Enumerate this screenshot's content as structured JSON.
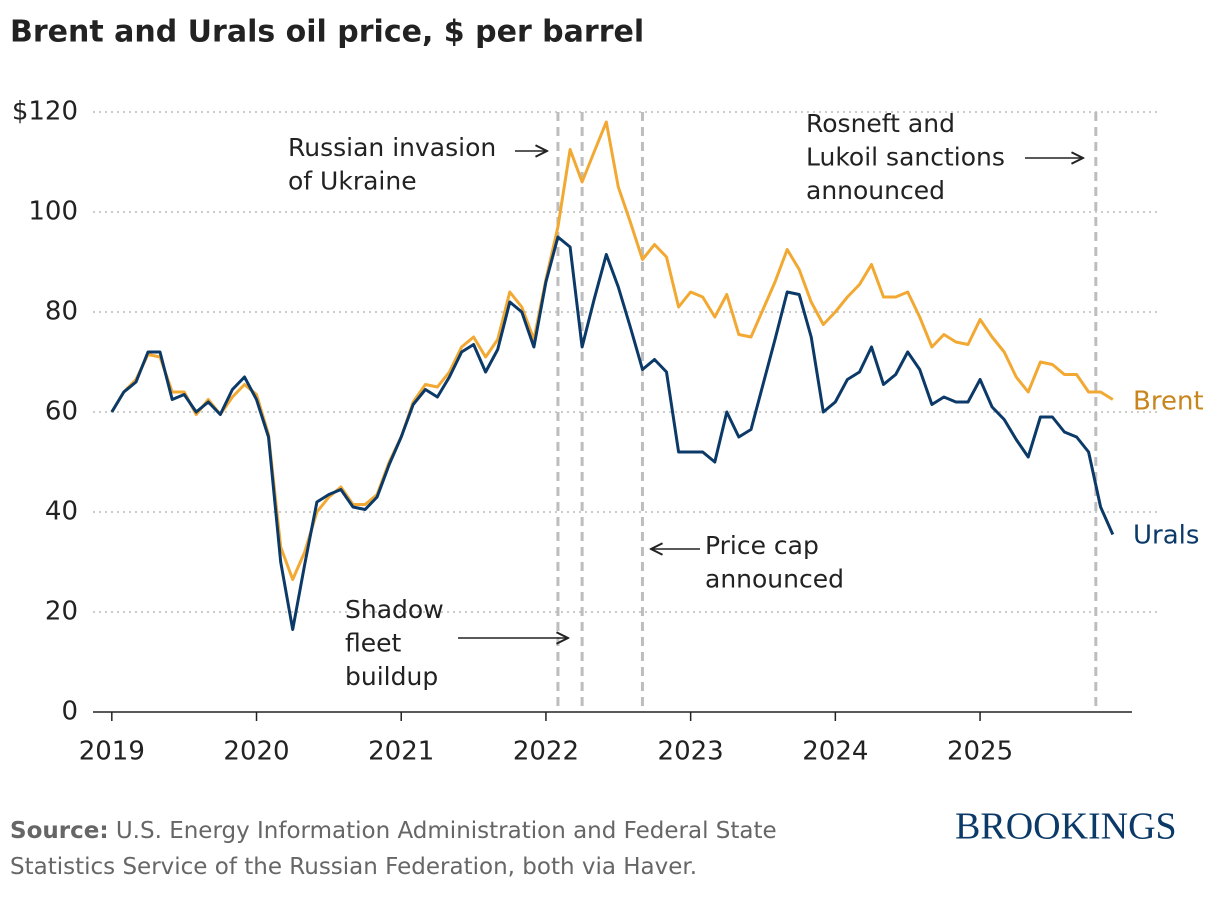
{
  "chart_data": {
    "type": "line",
    "title": "Brent and Urals oil price, $ per barrel",
    "x": [
      2019,
      2019.083,
      2019.167,
      2019.25,
      2019.333,
      2019.417,
      2019.5,
      2019.583,
      2019.667,
      2019.75,
      2019.833,
      2019.917,
      2020,
      2020.083,
      2020.167,
      2020.25,
      2020.333,
      2020.417,
      2020.5,
      2020.583,
      2020.667,
      2020.75,
      2020.833,
      2020.917,
      2021,
      2021.083,
      2021.167,
      2021.25,
      2021.333,
      2021.417,
      2021.5,
      2021.583,
      2021.667,
      2021.75,
      2021.833,
      2021.917,
      2022,
      2022.083,
      2022.167,
      2022.25,
      2022.333,
      2022.417,
      2022.5,
      2022.583,
      2022.667,
      2022.75,
      2022.833,
      2022.917,
      2023,
      2023.083,
      2023.167,
      2023.25,
      2023.333,
      2023.417,
      2023.5,
      2023.583,
      2023.667,
      2023.75,
      2023.833,
      2023.917,
      2024,
      2024.083,
      2024.167,
      2024.25,
      2024.333,
      2024.417,
      2024.5,
      2024.583,
      2024.667,
      2024.75,
      2024.833,
      2024.917,
      2025,
      2025.083,
      2025.167,
      2025.25,
      2025.333,
      2025.417,
      2025.5,
      2025.583,
      2025.667,
      2025.75,
      2025.833,
      2025.917
    ],
    "series": [
      {
        "name": "Brent",
        "color": "#f2a933",
        "label_color": "#c8851c",
        "values": [
          60,
          64,
          66.5,
          71.5,
          71,
          64,
          64,
          59.5,
          62.5,
          59.5,
          63,
          65.5,
          63.5,
          55.5,
          33,
          26.5,
          32,
          40,
          43,
          45,
          41.5,
          41.5,
          43.5,
          50,
          55,
          62,
          65.5,
          65,
          68,
          73,
          75,
          71,
          74.5,
          84,
          81,
          74.5,
          86.5,
          97,
          112.5,
          106,
          112,
          118,
          105,
          98,
          90.5,
          93.5,
          91,
          81,
          84,
          83,
          79,
          83.5,
          75.5,
          75,
          80.5,
          86,
          92.5,
          88.5,
          82,
          77.5,
          80,
          83,
          85.5,
          89.5,
          83,
          83,
          84,
          79,
          73,
          75.5,
          74,
          73.5,
          78.5,
          75,
          72,
          67,
          64,
          70,
          69.5,
          67.5,
          67.5,
          64,
          64,
          62.5
        ]
      },
      {
        "name": "Urals",
        "color": "#0c3a68",
        "label_color": "#0c3a68",
        "values": [
          60,
          64,
          66,
          72,
          72,
          62.5,
          63.5,
          60,
          62,
          59.5,
          64.5,
          67,
          62.5,
          55,
          30,
          16.5,
          29.5,
          42,
          43.5,
          44.5,
          41,
          40.5,
          43,
          49.5,
          55,
          61.5,
          64.5,
          63,
          67,
          72,
          73.5,
          68,
          72.5,
          82,
          80,
          73,
          86,
          95,
          93,
          73,
          82.5,
          91.5,
          85,
          77,
          68.5,
          70.5,
          68,
          52,
          52,
          52,
          50,
          60,
          55,
          56.5,
          65.5,
          74.5,
          84,
          83.5,
          75,
          60,
          62,
          66.5,
          68,
          73,
          65.5,
          67.5,
          72,
          68.5,
          61.5,
          63,
          62,
          62,
          66.5,
          61,
          58.5,
          54.5,
          51,
          59,
          59,
          56,
          55,
          52,
          41,
          35.5
        ]
      }
    ],
    "xlim": [
      2018.87,
      2026.05
    ],
    "xticks": [
      2019,
      2020,
      2021,
      2022,
      2023,
      2024,
      2025
    ],
    "ylim": [
      0,
      120
    ],
    "yticks": [
      0,
      20,
      40,
      60,
      80,
      100,
      {
        "value": 120,
        "label": "$120"
      }
    ],
    "grid": true,
    "vlines": [
      2022.083,
      2022.25,
      2022.667,
      2025.8
    ],
    "annotations": [
      {
        "lines": [
          "Russian invasion",
          "of Ukraine"
        ]
      },
      {
        "lines": [
          "Rosneft and",
          "Lukoil sanctions",
          "announced"
        ]
      },
      {
        "lines": [
          "Price cap",
          "announced"
        ]
      },
      {
        "lines": [
          "Shadow",
          "fleet",
          "buildup"
        ]
      }
    ],
    "source_label": "Source:",
    "source_lines": [
      "U.S. Energy Information Administration and Federal State",
      "Statistics Service of the Russian Federation, both via Haver."
    ],
    "brand": "BROOKINGS"
  }
}
